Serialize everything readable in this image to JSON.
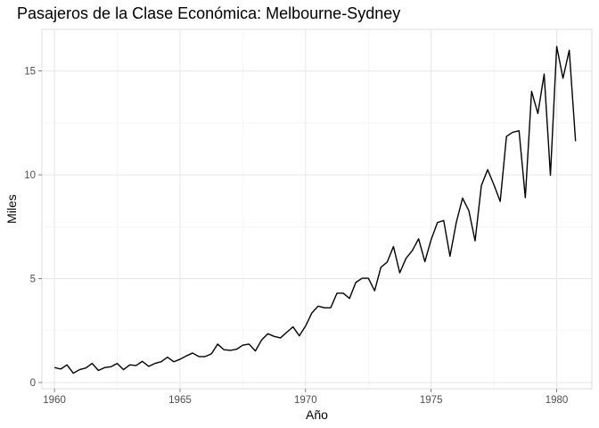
{
  "chart_data": {
    "type": "line",
    "title": "Pasajeros de la Clase Económica: Melbourne-Sydney",
    "xlabel": "Año",
    "ylabel": "Miles",
    "xlim": [
      1959.5,
      1981.4
    ],
    "ylim": [
      -0.3,
      17.0
    ],
    "x_major_ticks": [
      1960,
      1965,
      1970,
      1975,
      1980
    ],
    "x_minor_ticks": [
      1962.5,
      1967.5,
      1972.5,
      1977.5
    ],
    "y_major_ticks": [
      0,
      5,
      10,
      15
    ],
    "y_minor_ticks": [
      2.5,
      7.5,
      12.5
    ],
    "x_tick_labels": [
      "1960",
      "1965",
      "1970",
      "1975",
      "1980"
    ],
    "y_tick_labels": [
      "0",
      "5",
      "10",
      "15"
    ],
    "grid": true,
    "series": [
      {
        "name": "Pasajeros",
        "color": "#000000",
        "x": [
          1960.0,
          1960.25,
          1960.5,
          1960.75,
          1961.0,
          1961.25,
          1961.5,
          1961.75,
          1962.0,
          1962.25,
          1962.5,
          1962.75,
          1963.0,
          1963.25,
          1963.5,
          1963.75,
          1964.0,
          1964.25,
          1964.5,
          1964.75,
          1965.0,
          1965.25,
          1965.5,
          1965.75,
          1966.0,
          1966.25,
          1966.5,
          1966.75,
          1967.0,
          1967.25,
          1967.5,
          1967.75,
          1968.0,
          1968.25,
          1968.5,
          1968.75,
          1969.0,
          1969.25,
          1969.5,
          1969.75,
          1970.0,
          1970.25,
          1970.5,
          1970.75,
          1971.0,
          1971.25,
          1971.5,
          1971.75,
          1972.0,
          1972.25,
          1972.5,
          1972.75,
          1973.0,
          1973.25,
          1973.5,
          1973.75,
          1974.0,
          1974.25,
          1974.5,
          1974.75,
          1975.0,
          1975.25,
          1975.5,
          1975.75,
          1976.0,
          1976.25,
          1976.5,
          1976.75,
          1977.0,
          1977.25,
          1977.5,
          1977.75,
          1978.0,
          1978.25,
          1978.5,
          1978.75,
          1979.0,
          1979.25,
          1979.5,
          1979.75,
          1980.0,
          1980.25,
          1980.5,
          1980.75
        ],
        "y": [
          0.72,
          0.65,
          0.85,
          0.45,
          0.62,
          0.7,
          0.92,
          0.58,
          0.72,
          0.76,
          0.92,
          0.62,
          0.85,
          0.82,
          1.02,
          0.78,
          0.92,
          1.0,
          1.22,
          1.0,
          1.12,
          1.28,
          1.42,
          1.25,
          1.25,
          1.38,
          1.85,
          1.58,
          1.55,
          1.6,
          1.8,
          1.85,
          1.52,
          2.05,
          2.35,
          2.22,
          2.15,
          2.42,
          2.68,
          2.25,
          2.72,
          3.35,
          3.68,
          3.6,
          3.6,
          4.3,
          4.3,
          4.05,
          4.82,
          5.02,
          5.02,
          4.42,
          5.55,
          5.8,
          6.55,
          5.28,
          5.98,
          6.35,
          6.92,
          5.82,
          6.88,
          7.7,
          7.8,
          6.08,
          7.7,
          8.88,
          8.28,
          6.82,
          9.48,
          10.25,
          9.52,
          8.72,
          11.85,
          12.05,
          12.12,
          8.9,
          14.02,
          12.95,
          14.85,
          9.98,
          16.18,
          14.65,
          16.0,
          11.62
        ]
      }
    ]
  }
}
